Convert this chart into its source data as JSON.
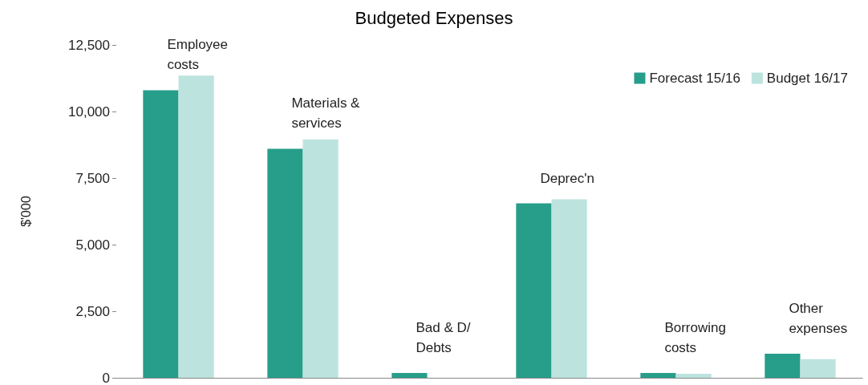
{
  "chart_data": {
    "type": "bar",
    "title": "Budgeted Expenses",
    "ylabel": "$'000",
    "categories": [
      "Employee costs",
      "Materials & services",
      "Bad & D/Debts",
      "Deprec'n",
      "Borrowing costs",
      "Other expenses"
    ],
    "series": [
      {
        "name": "Forecast 15/16",
        "color": "#269e8a",
        "values": [
          10800,
          8600,
          180,
          6550,
          180,
          900
        ]
      },
      {
        "name": "Budget 16/17",
        "color": "#bde3df",
        "values": [
          11350,
          8950,
          0,
          6700,
          150,
          700
        ]
      }
    ],
    "ylim": [
      0,
      12500
    ],
    "yticks": [
      0,
      {
        "value": 2500,
        "label": "2,500"
      },
      {
        "value": 5000,
        "label": "5,000"
      },
      {
        "value": 7500,
        "label": "7,500"
      },
      {
        "value": 10000,
        "label": "10,000"
      },
      {
        "value": 12500,
        "label": "12,500"
      }
    ],
    "grid": false,
    "legend": "top right"
  }
}
